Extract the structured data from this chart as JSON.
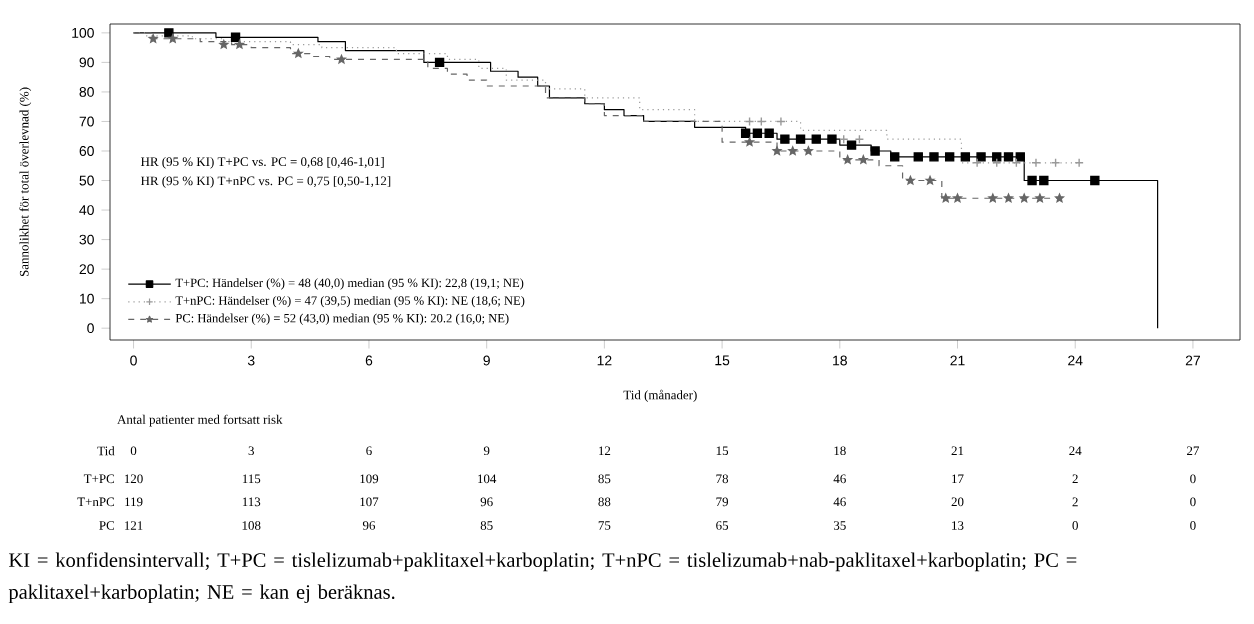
{
  "chart_data": {
    "type": "step",
    "xlabel": "Tid (månader)",
    "ylabel": "Sannolikhet för total överlevnad (%)",
    "xlim": [
      -0.6,
      28.2
    ],
    "ylim": [
      -4,
      103
    ],
    "xticks": [
      0,
      3,
      6,
      9,
      12,
      15,
      18,
      21,
      24,
      27
    ],
    "yticks": [
      0,
      10,
      20,
      30,
      40,
      50,
      60,
      70,
      80,
      90,
      100
    ],
    "grid": false,
    "legend": "bottom left",
    "series": [
      {
        "name": "T+PC: Händelser (%) = 48 (40,0) median (95 % KI): 22,8 (19,1; NE)",
        "color": "#000000",
        "line_style": "solid",
        "x": [
          0,
          2.1,
          4.7,
          5.4,
          7.4,
          9.1,
          9.8,
          10.3,
          10.6,
          11.5,
          12.0,
          12.5,
          13.0,
          14.3,
          15.6,
          16.4,
          18.0,
          18.8,
          19.3,
          22.7,
          26.1
        ],
        "values": [
          100,
          98.5,
          97,
          94,
          90,
          87,
          85,
          82,
          78,
          76,
          74,
          72,
          70,
          68,
          66,
          64,
          62,
          60,
          58,
          50,
          0
        ]
      },
      {
        "name": "T+nPC: Händelser (%) = 47 (39,5) median (95 % KI): NE (18,6; NE)",
        "color": "#999999",
        "line_style": "dotted",
        "x": [
          0,
          0.3,
          1.5,
          2.3,
          4.0,
          4.8,
          6.7,
          8.0,
          8.8,
          9.5,
          10.5,
          11.5,
          12.9,
          14.3,
          17.0,
          19.2,
          21.1,
          24.1
        ],
        "values": [
          100,
          99,
          98,
          97,
          96,
          95,
          93,
          91,
          88,
          84,
          81,
          78,
          74,
          70,
          67,
          64,
          56,
          56
        ]
      },
      {
        "name": "PC: Händelser (%) = 52 (43,0) median (95 % KI): 20.2 (16,0; NE)",
        "color": "#666666",
        "line_style": "dashed",
        "x": [
          0,
          0.5,
          1.7,
          2.5,
          3.0,
          4.0,
          4.5,
          5.0,
          7.5,
          8.0,
          8.5,
          9.0,
          10.5,
          11.5,
          12.0,
          13.0,
          15.0,
          16.4,
          18.0,
          19.0,
          19.6,
          20.6,
          23.6
        ],
        "values": [
          100,
          98,
          97,
          96,
          95,
          93,
          92,
          91,
          88,
          86,
          84,
          82,
          78,
          76,
          72,
          70,
          63,
          60,
          57,
          55,
          50,
          44,
          44
        ]
      },
      {
        "type": "scatter",
        "color": "#000000",
        "marker": "square",
        "x": [
          0.9,
          2.6,
          7.8,
          15.6,
          15.9,
          16.2,
          16.6,
          17.0,
          17.4,
          17.8,
          18.3,
          18.9,
          19.4,
          20.0,
          20.4,
          20.8,
          21.2,
          21.6,
          22.0,
          22.3,
          22.6,
          22.9,
          23.2,
          24.5
        ],
        "values": [
          100,
          98.5,
          90,
          66,
          66,
          66,
          64,
          64,
          64,
          64,
          62,
          60,
          58,
          58,
          58,
          58,
          58,
          58,
          58,
          58,
          58,
          50,
          50,
          50
        ]
      },
      {
        "type": "scatter",
        "color": "#999999",
        "marker": "cross",
        "x": [
          15.7,
          16.0,
          16.5,
          18.1,
          18.5,
          21.5,
          22.0,
          22.5,
          23.0,
          23.5,
          24.1
        ],
        "values": [
          70,
          70,
          70,
          64,
          64,
          56,
          56,
          56,
          56,
          56,
          56
        ]
      },
      {
        "type": "scatter",
        "color": "#666666",
        "marker": "star",
        "x": [
          0.5,
          1.0,
          2.3,
          2.7,
          4.2,
          5.3,
          15.7,
          16.4,
          16.8,
          17.2,
          18.2,
          18.6,
          19.8,
          20.3,
          20.7,
          21.0,
          21.9,
          22.3,
          22.7,
          23.1,
          23.6
        ],
        "values": [
          98,
          98,
          96,
          96,
          93,
          91,
          63,
          60,
          60,
          60,
          57,
          57,
          50,
          50,
          44,
          44,
          44,
          44,
          44,
          44,
          44
        ]
      }
    ],
    "annotations": [
      "HR (95 % KI) T+PC vs. PC = 0,68 [0,46-1,01]",
      "HR (95 % KI) T+nPC vs. PC = 0,75 [0,50-1,12]",
      "Antal patienter med fortsatt risk",
      "Tid",
      "0",
      "3",
      "6",
      "9",
      "12",
      "15",
      "18",
      "21",
      "24",
      "27",
      "T+PC",
      "120",
      "115",
      "109",
      "104",
      "85",
      "78",
      "46",
      "17",
      "2",
      "0",
      "T+nPC",
      "119",
      "113",
      "107",
      "96",
      "88",
      "79",
      "46",
      "20",
      "2",
      "0",
      "PC",
      "121",
      "108",
      "96",
      "85",
      "75",
      "65",
      "35",
      "13",
      "0",
      "0",
      "KI = konfidensintervall; T+PC = tislelizumab+paklitaxel+karboplatin; T+nPC = tislelizumab+nab-paklitaxel+karboplatin; PC = paklitaxel+karboplatin; NE = kan ej beräknas."
    ]
  }
}
